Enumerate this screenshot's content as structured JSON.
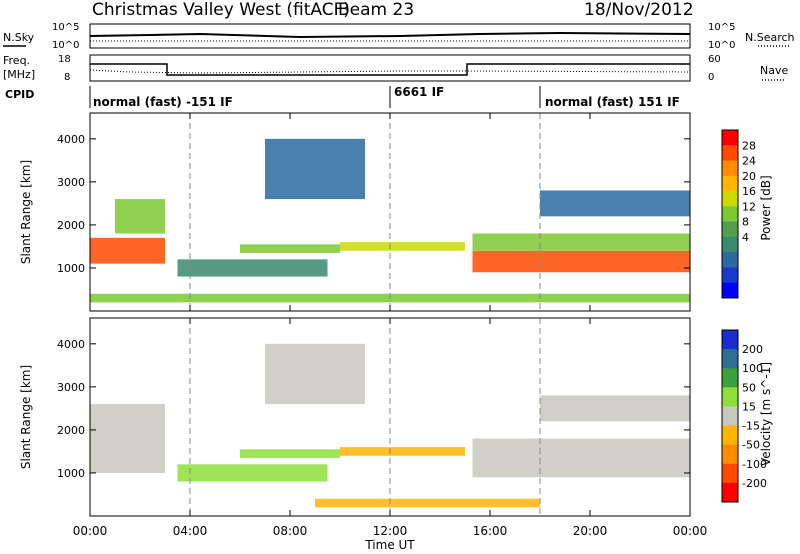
{
  "header": {
    "title": "Christmas Valley West (fitACF)",
    "beam": "Beam 23",
    "date": "18/Nov/2012"
  },
  "top_panels": {
    "nsky_label": "N.Sky",
    "nsearch_label": "N.Search",
    "noise_ticks": [
      "10^5",
      "10^0"
    ],
    "freq_label_1": "Freq.",
    "freq_label_2": "[MHz]",
    "freq_ticks": [
      "18",
      "8"
    ],
    "nave_label": "Nave",
    "nave_ticks": [
      "60",
      "0"
    ],
    "cpid_label": "CPID",
    "cpid_segments": [
      {
        "label": "normal (fast) -151 IF",
        "start_h": 0
      },
      {
        "label": "6661 IF",
        "start_h": 12
      },
      {
        "label": "normal (fast) 151 IF",
        "start_h": 18
      }
    ]
  },
  "x_axis": {
    "label": "Time UT",
    "ticks": [
      "00:00",
      "04:00",
      "08:00",
      "12:00",
      "16:00",
      "20:00",
      "00:00"
    ]
  },
  "power_colorbar": {
    "title": "Power [dB]",
    "ticks": [
      "28",
      "24",
      "20",
      "16",
      "12",
      "8",
      "4"
    ],
    "colors": [
      "#ff0000",
      "#ff4a00",
      "#ff8c00",
      "#ffb400",
      "#c8dc00",
      "#7ec832",
      "#50a050",
      "#3a8a6e",
      "#2a6aa0",
      "#1a3acd",
      "#0000ff"
    ]
  },
  "velocity_colorbar": {
    "title": "Velocity [m s^-1]",
    "ticks": [
      "200",
      "100",
      "50",
      "15",
      "-15",
      "-50",
      "-100",
      "-200"
    ],
    "colors": [
      "#1a2ecd",
      "#2e6e96",
      "#3ca03c",
      "#8ede3c",
      "#c8c8c0",
      "#ffb400",
      "#ff8c00",
      "#ff4a00",
      "#ff0000"
    ]
  },
  "chart_data": [
    {
      "type": "heatmap",
      "title": "Power",
      "xlabel": "Time UT",
      "ylabel": "Slant Range [km]",
      "xlim": [
        0,
        24
      ],
      "ylim": [
        0,
        4600
      ],
      "y_ticks": [
        1000,
        2000,
        3000,
        4000
      ],
      "colorbar_label": "Power [dB]",
      "colorbar_range": [
        0,
        30
      ],
      "regions": [
        {
          "t0": 0,
          "t1": 3.0,
          "r0": 1100,
          "r1": 1700,
          "value": 26
        },
        {
          "t0": 1.0,
          "t1": 3.0,
          "r0": 1800,
          "r1": 2600,
          "value": 16
        },
        {
          "t0": 3.5,
          "t1": 9.5,
          "r0": 800,
          "r1": 1200,
          "value": 10
        },
        {
          "t0": 6.0,
          "t1": 10.0,
          "r0": 1350,
          "r1": 1550,
          "value": 16
        },
        {
          "t0": 10.0,
          "t1": 15.0,
          "r0": 1400,
          "r1": 1600,
          "value": 18
        },
        {
          "t0": 15.3,
          "t1": 24.0,
          "r0": 900,
          "r1": 1400,
          "value": 26
        },
        {
          "t0": 15.3,
          "t1": 24.0,
          "r0": 1400,
          "r1": 1800,
          "value": 16
        },
        {
          "t0": 18.0,
          "t1": 24.0,
          "r0": 2200,
          "r1": 2800,
          "value": 8
        },
        {
          "t0": 7.0,
          "t1": 11.0,
          "r0": 2600,
          "r1": 4000,
          "value": 8
        },
        {
          "t0": 0,
          "t1": 24.0,
          "r0": 200,
          "r1": 400,
          "value": 14
        }
      ]
    },
    {
      "type": "heatmap",
      "title": "Velocity",
      "xlabel": "Time UT",
      "ylabel": "Slant Range [km]",
      "xlim": [
        0,
        24
      ],
      "ylim": [
        0,
        4600
      ],
      "y_ticks": [
        1000,
        2000,
        3000,
        4000
      ],
      "colorbar_label": "Velocity [m s^-1]",
      "colorbar_range": [
        -200,
        200
      ],
      "regions": [
        {
          "t0": 0,
          "t1": 3.0,
          "r0": 1000,
          "r1": 2600,
          "value": 0
        },
        {
          "t0": 3.5,
          "t1": 9.5,
          "r0": 800,
          "r1": 1200,
          "value": 40
        },
        {
          "t0": 6.0,
          "t1": 10.0,
          "r0": 1350,
          "r1": 1550,
          "value": 40
        },
        {
          "t0": 10.0,
          "t1": 15.0,
          "r0": 1400,
          "r1": 1600,
          "value": -40
        },
        {
          "t0": 15.3,
          "t1": 24.0,
          "r0": 900,
          "r1": 1800,
          "value": 0
        },
        {
          "t0": 18.0,
          "t1": 24.0,
          "r0": 2200,
          "r1": 2800,
          "value": 0
        },
        {
          "t0": 7.0,
          "t1": 11.0,
          "r0": 2600,
          "r1": 4000,
          "value": 0
        },
        {
          "t0": 9.0,
          "t1": 18.0,
          "r0": 200,
          "r1": 400,
          "value": -60
        }
      ]
    }
  ]
}
